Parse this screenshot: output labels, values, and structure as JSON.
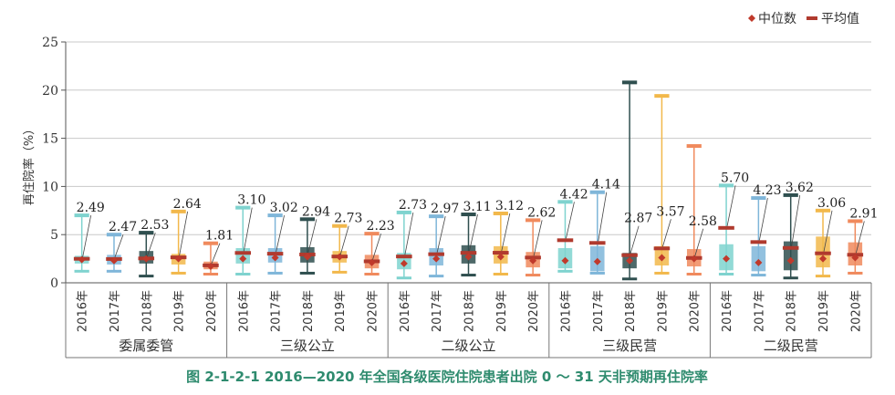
{
  "chart_data": {
    "type": "box",
    "title": "图 2-1-2-1   2016—2020 年全国各级医院住院患者出院 0 ～ 31 天非预期再住院率",
    "ylabel": "再住院率（%）",
    "ylim": [
      0,
      25
    ],
    "yticks": [
      0,
      5,
      10,
      15,
      20,
      25
    ],
    "grid": true,
    "legend_position": "top-right",
    "legend": [
      {
        "label": "中位数",
        "color": "#c0392b",
        "marker": "diamond"
      },
      {
        "label": "平均值",
        "color": "#b03a2e",
        "marker": "bar"
      }
    ],
    "year_colors": {
      "2016年": "#7fd3cf",
      "2017年": "#7fb6d9",
      "2018年": "#2f4f4f",
      "2019年": "#f2b84b",
      "2020年": "#f08a5d"
    },
    "groups": [
      {
        "name": "委属委管",
        "boxes": [
          {
            "year": "2016年",
            "min": 1.2,
            "q1": 2.0,
            "median": 2.4,
            "q3": 2.8,
            "max": 7.0,
            "mean": 2.49,
            "label": "2.49"
          },
          {
            "year": "2017年",
            "min": 1.2,
            "q1": 1.9,
            "median": 2.3,
            "q3": 2.9,
            "max": 5.0,
            "mean": 2.47,
            "label": "2.47"
          },
          {
            "year": "2018年",
            "min": 0.7,
            "q1": 2.0,
            "median": 2.5,
            "q3": 3.3,
            "max": 5.2,
            "mean": 2.53,
            "label": "2.53"
          },
          {
            "year": "2019年",
            "min": 1.0,
            "q1": 1.9,
            "median": 2.5,
            "q3": 3.0,
            "max": 7.4,
            "mean": 2.64,
            "label": "2.64"
          },
          {
            "year": "2020年",
            "min": 0.9,
            "q1": 1.4,
            "median": 1.7,
            "q3": 2.2,
            "max": 4.1,
            "mean": 1.81,
            "label": "1.81"
          }
        ]
      },
      {
        "name": "三级公立",
        "boxes": [
          {
            "year": "2016年",
            "min": 0.9,
            "q1": 2.0,
            "median": 2.5,
            "q3": 3.6,
            "max": 7.8,
            "mean": 3.1,
            "label": "3.10"
          },
          {
            "year": "2017年",
            "min": 1.0,
            "q1": 2.1,
            "median": 2.6,
            "q3": 3.6,
            "max": 7.0,
            "mean": 3.02,
            "label": "3.02"
          },
          {
            "year": "2018年",
            "min": 1.0,
            "q1": 2.1,
            "median": 2.7,
            "q3": 3.7,
            "max": 6.6,
            "mean": 2.94,
            "label": "2.94"
          },
          {
            "year": "2019年",
            "min": 1.1,
            "q1": 2.1,
            "median": 2.7,
            "q3": 3.3,
            "max": 5.9,
            "mean": 2.73,
            "label": "2.73"
          },
          {
            "year": "2020年",
            "min": 0.9,
            "q1": 1.5,
            "median": 2.1,
            "q3": 2.9,
            "max": 5.1,
            "mean": 2.23,
            "label": "2.23"
          }
        ]
      },
      {
        "name": "二级公立",
        "boxes": [
          {
            "year": "2016年",
            "min": 0.5,
            "q1": 1.4,
            "median": 2.0,
            "q3": 3.1,
            "max": 7.3,
            "mean": 2.73,
            "label": "2.73"
          },
          {
            "year": "2017年",
            "min": 0.7,
            "q1": 1.8,
            "median": 2.5,
            "q3": 3.6,
            "max": 6.9,
            "mean": 2.97,
            "label": "2.97"
          },
          {
            "year": "2018年",
            "min": 0.8,
            "q1": 2.0,
            "median": 2.7,
            "q3": 3.9,
            "max": 7.1,
            "mean": 3.11,
            "label": "3.11"
          },
          {
            "year": "2019年",
            "min": 0.9,
            "q1": 2.0,
            "median": 2.7,
            "q3": 3.8,
            "max": 7.2,
            "mean": 3.12,
            "label": "3.12"
          },
          {
            "year": "2020年",
            "min": 0.8,
            "q1": 1.6,
            "median": 2.3,
            "q3": 3.2,
            "max": 6.5,
            "mean": 2.62,
            "label": "2.62"
          }
        ]
      },
      {
        "name": "三级民营",
        "boxes": [
          {
            "year": "2016年",
            "min": 1.2,
            "q1": 1.5,
            "median": 2.3,
            "q3": 3.6,
            "max": 8.4,
            "mean": 4.42,
            "label": "4.42"
          },
          {
            "year": "2017年",
            "min": 1.0,
            "q1": 1.2,
            "median": 2.2,
            "q3": 3.8,
            "max": 9.4,
            "mean": 4.14,
            "label": "4.14"
          },
          {
            "year": "2018年",
            "min": 0.4,
            "q1": 1.5,
            "median": 2.3,
            "q3": 3.1,
            "max": 20.8,
            "mean": 2.87,
            "label": "2.87"
          },
          {
            "year": "2019年",
            "min": 1.0,
            "q1": 1.8,
            "median": 2.6,
            "q3": 3.8,
            "max": 19.4,
            "mean": 3.57,
            "label": "3.57"
          },
          {
            "year": "2020年",
            "min": 0.9,
            "q1": 1.7,
            "median": 2.5,
            "q3": 3.5,
            "max": 14.2,
            "mean": 2.58,
            "label": "2.58"
          }
        ]
      },
      {
        "name": "二级民营",
        "boxes": [
          {
            "year": "2016年",
            "min": 0.9,
            "q1": 1.3,
            "median": 2.5,
            "q3": 4.0,
            "max": 10.1,
            "mean": 5.7,
            "label": "5.70"
          },
          {
            "year": "2017年",
            "min": 0.8,
            "q1": 1.2,
            "median": 2.1,
            "q3": 3.8,
            "max": 8.8,
            "mean": 4.23,
            "label": "4.23"
          },
          {
            "year": "2018年",
            "min": 0.5,
            "q1": 1.3,
            "median": 2.3,
            "q3": 4.3,
            "max": 9.1,
            "mean": 3.62,
            "label": "3.62"
          },
          {
            "year": "2019年",
            "min": 0.7,
            "q1": 1.6,
            "median": 2.5,
            "q3": 4.8,
            "max": 7.5,
            "mean": 3.06,
            "label": "3.06"
          },
          {
            "year": "2020年",
            "min": 1.0,
            "q1": 1.8,
            "median": 2.6,
            "q3": 4.2,
            "max": 6.4,
            "mean": 2.91,
            "label": "2.91"
          }
        ]
      }
    ]
  }
}
